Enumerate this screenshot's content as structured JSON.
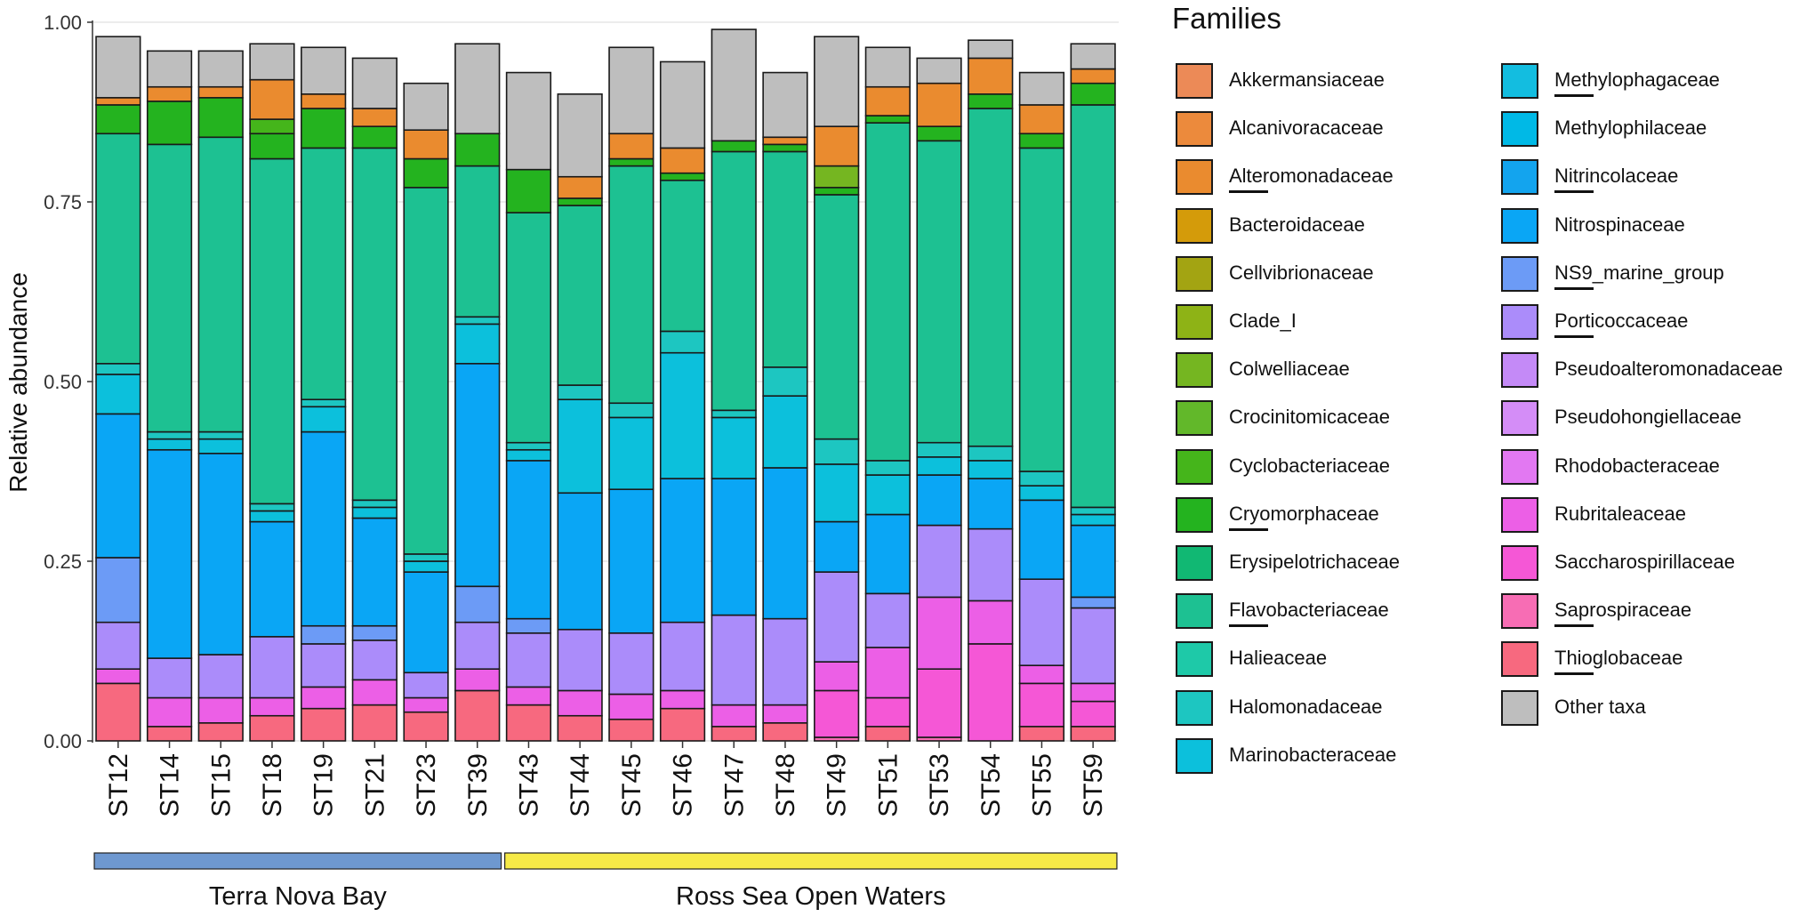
{
  "chart_data": {
    "type": "bar",
    "stacked": true,
    "ylabel": "Relative abundance",
    "xlabel": "",
    "ylim": [
      0,
      1
    ],
    "y_ticks": [
      "0.00",
      "0.25",
      "0.50",
      "0.75",
      "1.00"
    ],
    "y_tick_values": [
      0,
      0.25,
      0.5,
      0.75,
      1.0
    ],
    "legend_title": "Families",
    "legend_position": "right",
    "categories": [
      "ST12",
      "ST14",
      "ST15",
      "ST18",
      "ST19",
      "ST21",
      "ST23",
      "ST39",
      "ST43",
      "ST44",
      "ST45",
      "ST46",
      "ST47",
      "ST48",
      "ST49",
      "ST51",
      "ST53",
      "ST54",
      "ST55",
      "ST59"
    ],
    "groups": [
      {
        "label": "Terra Nova Bay",
        "first": 0,
        "last": 7,
        "color": "#6e98d0"
      },
      {
        "label": "Ross Sea Open Waters",
        "first": 8,
        "last": 19,
        "color": "#f6ea47"
      }
    ],
    "series": [
      {
        "name": "Thioglobaceae",
        "color": "#f7697f",
        "underline": true,
        "values": [
          0.08,
          0.02,
          0.025,
          0.035,
          0.045,
          0.05,
          0.04,
          0.07,
          0.05,
          0.035,
          0.03,
          0.045,
          0.02,
          0.025,
          0.0,
          0.02,
          0.0,
          0.0,
          0.02,
          0.02
        ]
      },
      {
        "name": "Saprospiraceae",
        "color": "#f76db4",
        "underline": true,
        "values": [
          0.0,
          0.0,
          0.0,
          0.0,
          0.0,
          0.0,
          0.0,
          0.0,
          0.0,
          0.0,
          0.0,
          0.0,
          0.0,
          0.0,
          0.005,
          0.0,
          0.005,
          0.0,
          0.0,
          0.0
        ]
      },
      {
        "name": "Saccharospirillaceae",
        "color": "#f557d6",
        "underline": false,
        "values": [
          0.0,
          0.0,
          0.0,
          0.0,
          0.0,
          0.0,
          0.0,
          0.0,
          0.0,
          0.0,
          0.0,
          0.0,
          0.0,
          0.0,
          0.065,
          0.04,
          0.095,
          0.135,
          0.06,
          0.035
        ]
      },
      {
        "name": "Rubritaleaceae",
        "color": "#ec5fe6",
        "underline": false,
        "values": [
          0.02,
          0.04,
          0.035,
          0.025,
          0.03,
          0.035,
          0.02,
          0.03,
          0.025,
          0.035,
          0.035,
          0.025,
          0.03,
          0.025,
          0.04,
          0.07,
          0.1,
          0.06,
          0.025,
          0.025
        ]
      },
      {
        "name": "Rhodobacteraceae",
        "color": "#e278f2",
        "underline": false,
        "values": [
          0.0,
          0.0,
          0.0,
          0.0,
          0.0,
          0.0,
          0.0,
          0.0,
          0.0,
          0.0,
          0.0,
          0.0,
          0.0,
          0.0,
          0.0,
          0.0,
          0.0,
          0.0,
          0.0,
          0.0
        ]
      },
      {
        "name": "Pseudohongiellaceae",
        "color": "#d48df7",
        "underline": false,
        "values": [
          0.0,
          0.0,
          0.0,
          0.0,
          0.0,
          0.0,
          0.0,
          0.0,
          0.0,
          0.0,
          0.0,
          0.0,
          0.0,
          0.0,
          0.0,
          0.0,
          0.0,
          0.0,
          0.0,
          0.0
        ]
      },
      {
        "name": "Pseudoalteromonadaceae",
        "color": "#c48af7",
        "underline": false,
        "values": [
          0.0,
          0.0,
          0.0,
          0.0,
          0.0,
          0.0,
          0.0,
          0.0,
          0.0,
          0.0,
          0.0,
          0.0,
          0.0,
          0.0,
          0.0,
          0.0,
          0.0,
          0.0,
          0.0,
          0.0
        ]
      },
      {
        "name": "Porticoccaceae",
        "color": "#ab8cfa",
        "underline": true,
        "values": [
          0.065,
          0.055,
          0.06,
          0.085,
          0.06,
          0.055,
          0.035,
          0.065,
          0.075,
          0.085,
          0.085,
          0.095,
          0.125,
          0.12,
          0.125,
          0.075,
          0.1,
          0.1,
          0.12,
          0.105
        ]
      },
      {
        "name": "NS9_marine_group",
        "color": "#6c9bf6",
        "underline": true,
        "values": [
          0.09,
          0.0,
          0.0,
          0.0,
          0.025,
          0.02,
          0.0,
          0.05,
          0.02,
          0.0,
          0.0,
          0.0,
          0.0,
          0.0,
          0.0,
          0.0,
          0.0,
          0.0,
          0.0,
          0.015
        ]
      },
      {
        "name": "Nitrospinaceae",
        "color": "#0aa6f5",
        "underline": false,
        "values": [
          0.2,
          0.29,
          0.28,
          0.16,
          0.27,
          0.15,
          0.14,
          0.31,
          0.22,
          0.19,
          0.2,
          0.2,
          0.19,
          0.21,
          0.07,
          0.11,
          0.07,
          0.07,
          0.11,
          0.1
        ]
      },
      {
        "name": "Nitrincolaceae",
        "color": "#13a4ee",
        "underline": true,
        "values": [
          0.0,
          0.0,
          0.0,
          0.0,
          0.0,
          0.0,
          0.0,
          0.0,
          0.0,
          0.0,
          0.0,
          0.0,
          0.0,
          0.0,
          0.0,
          0.0,
          0.0,
          0.0,
          0.0,
          0.0
        ]
      },
      {
        "name": "Methylophilaceae",
        "color": "#00b9e6",
        "underline": false,
        "values": [
          0.0,
          0.0,
          0.0,
          0.0,
          0.0,
          0.0,
          0.0,
          0.0,
          0.0,
          0.0,
          0.0,
          0.0,
          0.0,
          0.0,
          0.0,
          0.0,
          0.0,
          0.0,
          0.0,
          0.0
        ]
      },
      {
        "name": "Methylophagaceae",
        "color": "#13bde0",
        "underline": true,
        "values": [
          0.0,
          0.0,
          0.0,
          0.0,
          0.0,
          0.0,
          0.0,
          0.0,
          0.0,
          0.0,
          0.0,
          0.0,
          0.0,
          0.0,
          0.0,
          0.0,
          0.0,
          0.0,
          0.0,
          0.0
        ]
      },
      {
        "name": "Marinobacteraceae",
        "color": "#0cc0dc",
        "underline": false,
        "values": [
          0.055,
          0.015,
          0.02,
          0.015,
          0.035,
          0.015,
          0.015,
          0.055,
          0.015,
          0.13,
          0.1,
          0.175,
          0.085,
          0.1,
          0.08,
          0.055,
          0.025,
          0.025,
          0.02,
          0.015
        ]
      },
      {
        "name": "Halomonadaceae",
        "color": "#1dc6c1",
        "underline": false,
        "values": [
          0.015,
          0.01,
          0.01,
          0.01,
          0.01,
          0.01,
          0.01,
          0.01,
          0.01,
          0.02,
          0.02,
          0.03,
          0.01,
          0.04,
          0.035,
          0.02,
          0.02,
          0.02,
          0.02,
          0.01
        ]
      },
      {
        "name": "Halieaceae",
        "color": "#1ec9a8",
        "underline": false,
        "values": [
          0.0,
          0.0,
          0.0,
          0.0,
          0.0,
          0.0,
          0.0,
          0.0,
          0.0,
          0.0,
          0.0,
          0.0,
          0.0,
          0.0,
          0.0,
          0.0,
          0.0,
          0.0,
          0.0,
          0.0
        ]
      },
      {
        "name": "Flavobacteriaceae",
        "color": "#1dc192",
        "underline": true,
        "values": [
          0.32,
          0.4,
          0.41,
          0.48,
          0.35,
          0.49,
          0.51,
          0.21,
          0.32,
          0.25,
          0.33,
          0.21,
          0.36,
          0.3,
          0.34,
          0.47,
          0.42,
          0.47,
          0.45,
          0.56
        ]
      },
      {
        "name": "Erysipelotrichaceae",
        "color": "#11b873",
        "underline": false,
        "values": [
          0.0,
          0.0,
          0.0,
          0.0,
          0.0,
          0.0,
          0.0,
          0.0,
          0.0,
          0.0,
          0.0,
          0.0,
          0.0,
          0.0,
          0.0,
          0.0,
          0.0,
          0.0,
          0.0,
          0.0
        ]
      },
      {
        "name": "Cryomorphaceae",
        "color": "#24b31f",
        "underline": true,
        "values": [
          0.04,
          0.06,
          0.055,
          0.035,
          0.055,
          0.03,
          0.04,
          0.045,
          0.06,
          0.01,
          0.01,
          0.01,
          0.015,
          0.01,
          0.01,
          0.01,
          0.02,
          0.02,
          0.02,
          0.03
        ]
      },
      {
        "name": "Cyclobacteriaceae",
        "color": "#45b51b",
        "underline": false,
        "values": [
          0.0,
          0.0,
          0.0,
          0.02,
          0.0,
          0.0,
          0.0,
          0.0,
          0.0,
          0.0,
          0.0,
          0.0,
          0.0,
          0.0,
          0.0,
          0.0,
          0.0,
          0.0,
          0.0,
          0.0
        ]
      },
      {
        "name": "Crocinitomicaceae",
        "color": "#62b82a",
        "underline": false,
        "values": [
          0.0,
          0.0,
          0.0,
          0.0,
          0.0,
          0.0,
          0.0,
          0.0,
          0.0,
          0.0,
          0.0,
          0.0,
          0.0,
          0.0,
          0.0,
          0.0,
          0.0,
          0.0,
          0.0,
          0.0
        ]
      },
      {
        "name": "Colwelliaceae",
        "color": "#75b621",
        "underline": false,
        "values": [
          0.0,
          0.0,
          0.0,
          0.0,
          0.0,
          0.0,
          0.0,
          0.0,
          0.0,
          0.0,
          0.0,
          0.0,
          0.0,
          0.0,
          0.03,
          0.0,
          0.0,
          0.0,
          0.0,
          0.0
        ]
      },
      {
        "name": "Clade_I",
        "color": "#8eb316",
        "underline": false,
        "values": [
          0.0,
          0.0,
          0.0,
          0.0,
          0.0,
          0.0,
          0.0,
          0.0,
          0.0,
          0.0,
          0.0,
          0.0,
          0.0,
          0.0,
          0.0,
          0.0,
          0.0,
          0.0,
          0.0,
          0.0
        ]
      },
      {
        "name": "Cellvibrionaceae",
        "color": "#a3a412",
        "underline": false,
        "values": [
          0.0,
          0.0,
          0.0,
          0.0,
          0.0,
          0.0,
          0.0,
          0.0,
          0.0,
          0.0,
          0.0,
          0.0,
          0.0,
          0.0,
          0.0,
          0.0,
          0.0,
          0.0,
          0.0,
          0.0
        ]
      },
      {
        "name": "Bacteroidaceae",
        "color": "#d49b0a",
        "underline": false,
        "values": [
          0.0,
          0.0,
          0.0,
          0.0,
          0.0,
          0.0,
          0.0,
          0.0,
          0.0,
          0.0,
          0.0,
          0.0,
          0.0,
          0.0,
          0.0,
          0.0,
          0.0,
          0.0,
          0.0,
          0.0
        ]
      },
      {
        "name": "Alteromonadaceae",
        "color": "#ea8b2f",
        "underline": true,
        "values": [
          0.01,
          0.02,
          0.015,
          0.055,
          0.02,
          0.025,
          0.04,
          0.0,
          0.0,
          0.03,
          0.035,
          0.035,
          0.0,
          0.01,
          0.055,
          0.04,
          0.06,
          0.05,
          0.04,
          0.02
        ]
      },
      {
        "name": "Alcanivoracaceae",
        "color": "#ec8a3c",
        "underline": false,
        "values": [
          0.0,
          0.0,
          0.0,
          0.0,
          0.0,
          0.0,
          0.0,
          0.0,
          0.0,
          0.0,
          0.0,
          0.0,
          0.0,
          0.0,
          0.0,
          0.0,
          0.0,
          0.0,
          0.0,
          0.0
        ]
      },
      {
        "name": "Akkermansiaceae",
        "color": "#ec8a57",
        "underline": false,
        "values": [
          0.0,
          0.0,
          0.0,
          0.0,
          0.0,
          0.0,
          0.0,
          0.0,
          0.0,
          0.0,
          0.0,
          0.0,
          0.0,
          0.0,
          0.0,
          0.0,
          0.0,
          0.0,
          0.0,
          0.0
        ]
      },
      {
        "name": "Other taxa",
        "color": "#bebebe",
        "underline": false,
        "values": [
          0.085,
          0.05,
          0.05,
          0.05,
          0.065,
          0.07,
          0.065,
          0.125,
          0.135,
          0.115,
          0.12,
          0.12,
          0.155,
          0.09,
          0.125,
          0.055,
          0.035,
          0.025,
          0.045,
          0.035
        ]
      }
    ],
    "legend_order": [
      "Akkermansiaceae",
      "Alcanivoracaceae",
      "Alteromonadaceae",
      "Bacteroidaceae",
      "Cellvibrionaceae",
      "Clade_I",
      "Colwelliaceae",
      "Crocinitomicaceae",
      "Cyclobacteriaceae",
      "Cryomorphaceae",
      "Erysipelotrichaceae",
      "Flavobacteriaceae",
      "Halieaceae",
      "Halomonadaceae",
      "Marinobacteraceae",
      "Methylophagaceae",
      "Methylophilaceae",
      "Nitrincolaceae",
      "Nitrospinaceae",
      "NS9_marine_group",
      "Porticoccaceae",
      "Pseudoalteromonadaceae",
      "Pseudohongiellaceae",
      "Rhodobacteraceae",
      "Rubritaleaceae",
      "Saccharospirillaceae",
      "Saprospiraceae",
      "Thioglobaceae",
      "Other taxa"
    ]
  }
}
